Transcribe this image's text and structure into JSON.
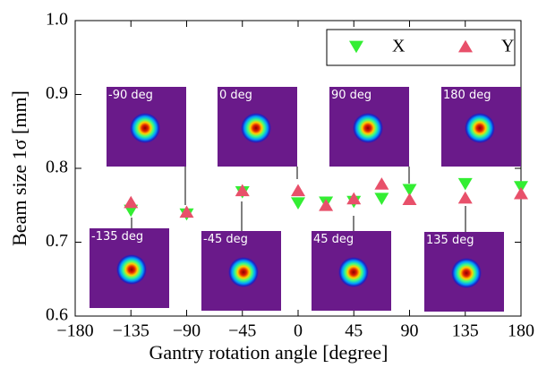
{
  "chart_data": {
    "type": "scatter",
    "x_label": "Gantry rotation angle [degree]",
    "y_label": "Beam size 1σ [mm]",
    "x": [
      -135,
      -90,
      -45,
      0,
      22.5,
      45,
      67.5,
      90,
      135,
      180
    ],
    "series": [
      {
        "name": "X",
        "color": "#33ee33",
        "marker": "down-triangle",
        "values": [
          0.743,
          0.738,
          0.768,
          0.753,
          0.754,
          0.755,
          0.759,
          0.771,
          0.779,
          0.775
        ]
      },
      {
        "name": "Y",
        "color": "#e8506a",
        "marker": "up-triangle",
        "values": [
          0.754,
          0.741,
          0.77,
          0.77,
          0.75,
          0.759,
          0.779,
          0.758,
          0.76,
          0.766
        ]
      }
    ],
    "xlim": [
      -180,
      180
    ],
    "xticks": [
      {
        "value": -180,
        "label": "−180"
      },
      {
        "value": -135,
        "label": "−135"
      },
      {
        "value": -90,
        "label": "−90"
      },
      {
        "value": -45,
        "label": "−45"
      },
      0,
      45,
      90,
      135,
      180
    ],
    "ylim": [
      0.6,
      1.0
    ],
    "yticks": [
      0.6,
      0.7,
      0.8,
      0.9,
      {
        "value": 1.0,
        "label": "1.0"
      }
    ],
    "grid": false,
    "legend": "upper right",
    "annotations": [
      "-90 deg",
      "0 deg",
      "90 deg",
      "180 deg",
      "-135 deg",
      "-45 deg",
      "45 deg",
      "135 deg"
    ]
  }
}
